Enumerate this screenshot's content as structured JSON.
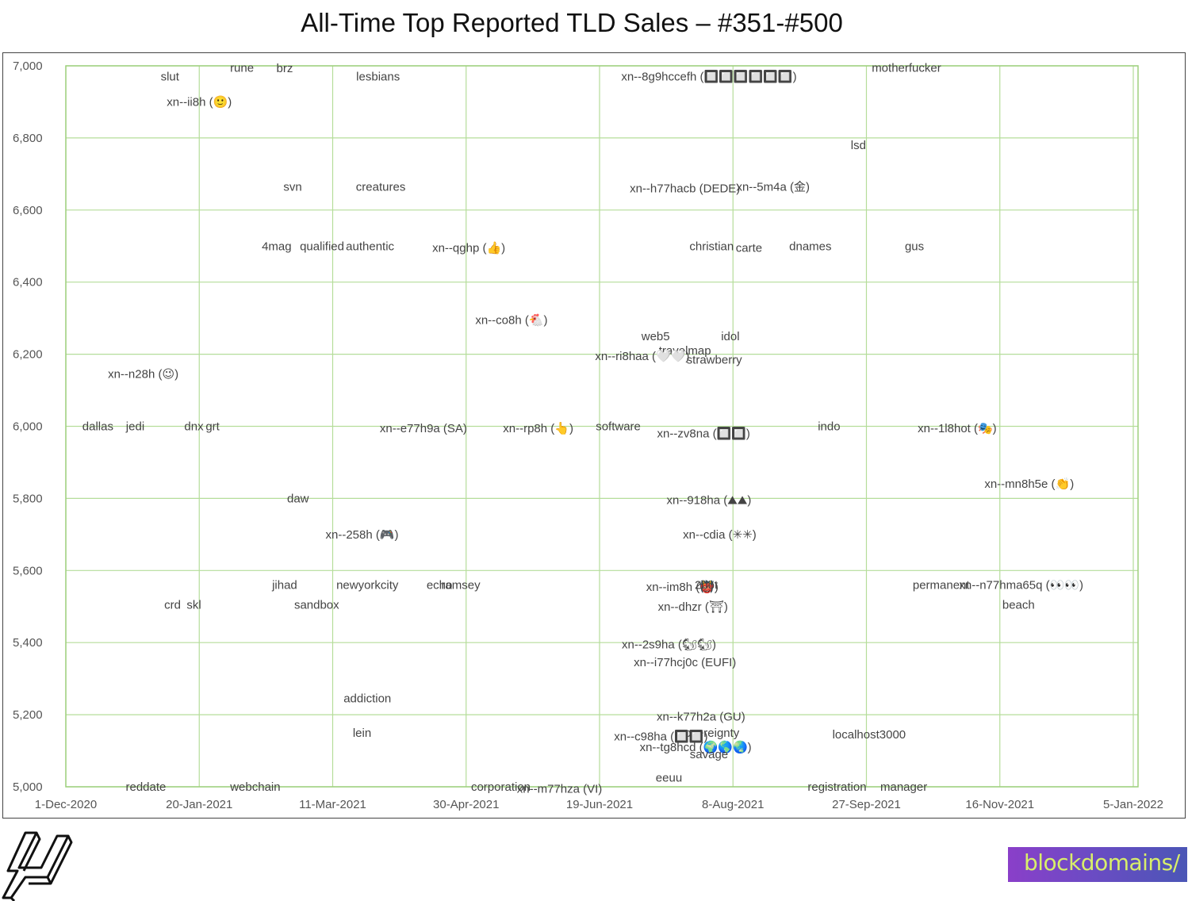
{
  "title": "All-Time Top Reported TLD Sales – #351-#500",
  "colors": {
    "grid": "#b5dd9a",
    "axis": "#9fd07f",
    "label": "#444444",
    "tick": "#555555",
    "logo_text": "#d8ef6a"
  },
  "logos": {
    "left_icon": "hexagon-logo-icon",
    "right_text": "blockdomains/"
  },
  "chart_data": {
    "type": "scatter",
    "title": "All-Time Top Reported TLD Sales – #351-#500",
    "x_axis": {
      "type": "date",
      "min": "2020-12-01",
      "max": "2022-01-05",
      "ticks": [
        "1-Dec-2020",
        "20-Jan-2021",
        "11-Mar-2021",
        "30-Apr-2021",
        "19-Jun-2021",
        "8-Aug-2021",
        "27-Sep-2021",
        "16-Nov-2021",
        "5-Jan-2022"
      ]
    },
    "y_axis": {
      "min": 5000,
      "max": 7000,
      "ticks": [
        "5,000",
        "5,200",
        "5,400",
        "5,600",
        "5,800",
        "6,000",
        "6,200",
        "6,400",
        "6,600",
        "6,800",
        "7,000"
      ]
    },
    "grid": true,
    "legend": "none",
    "points": [
      {
        "label": "slut",
        "x": "2021-01-09",
        "y": 6970
      },
      {
        "label": "rune",
        "x": "2021-02-05",
        "y": 6995
      },
      {
        "label": "brz",
        "x": "2021-02-21",
        "y": 6993
      },
      {
        "label": "lesbians",
        "x": "2021-03-28",
        "y": 6970
      },
      {
        "label": "xn--ii8h (🙂)",
        "x": "2021-01-20",
        "y": 6900
      },
      {
        "label": "xn--8g9hccefh (🔲🔲🔲🔲🔲🔲)",
        "x": "2021-07-30",
        "y": 6970
      },
      {
        "label": "motherfucker",
        "x": "2021-10-12",
        "y": 6995
      },
      {
        "label": "lsd",
        "x": "2021-09-24",
        "y": 6780
      },
      {
        "label": "svn",
        "x": "2021-02-24",
        "y": 6665
      },
      {
        "label": "creatures",
        "x": "2021-03-29",
        "y": 6665
      },
      {
        "label": "xn--h77hacb (DEDE)",
        "x": "2021-07-21",
        "y": 6660
      },
      {
        "label": "xn--5m4a (金)",
        "x": "2021-08-23",
        "y": 6665
      },
      {
        "label": "4mag",
        "x": "2021-02-18",
        "y": 6500
      },
      {
        "label": "qualified",
        "x": "2021-03-07",
        "y": 6500
      },
      {
        "label": "authentic",
        "x": "2021-03-25",
        "y": 6500
      },
      {
        "label": "xn--qghp (👍)",
        "x": "2021-05-01",
        "y": 6495
      },
      {
        "label": "christian",
        "x": "2021-07-31",
        "y": 6500
      },
      {
        "label": "carte",
        "x": "2021-08-14",
        "y": 6495
      },
      {
        "label": "dnames",
        "x": "2021-09-06",
        "y": 6500
      },
      {
        "label": "gus",
        "x": "2021-10-15",
        "y": 6500
      },
      {
        "label": "xn--co8h (🐔)",
        "x": "2021-05-17",
        "y": 6295
      },
      {
        "label": "web5",
        "x": "2021-07-10",
        "y": 6250
      },
      {
        "label": "idol",
        "x": "2021-08-07",
        "y": 6250
      },
      {
        "label": "travelmap",
        "x": "2021-07-21",
        "y": 6210
      },
      {
        "label": "xn--ri8haa (🤍🤍)",
        "x": "2021-07-05",
        "y": 6195
      },
      {
        "label": "strawberry",
        "x": "2021-08-01",
        "y": 6185
      },
      {
        "label": "xn--n28h (😉)",
        "x": "2020-12-30",
        "y": 6145
      },
      {
        "label": "dallas",
        "x": "2020-12-13",
        "y": 6000
      },
      {
        "label": "jedi",
        "x": "2020-12-27",
        "y": 6000
      },
      {
        "label": "dnx",
        "x": "2021-01-18",
        "y": 6000
      },
      {
        "label": "grt",
        "x": "2021-01-25",
        "y": 6000
      },
      {
        "label": "xn--e77h9a (SA)",
        "x": "2021-04-14",
        "y": 5995
      },
      {
        "label": "xn--rp8h (👆)",
        "x": "2021-05-27",
        "y": 5995
      },
      {
        "label": "software",
        "x": "2021-06-26",
        "y": 6000
      },
      {
        "label": "indo",
        "x": "2021-09-13",
        "y": 6000
      },
      {
        "label": "xn--1l8hot (🎭)",
        "x": "2021-10-31",
        "y": 5995
      },
      {
        "label": "xn--zv8na (🔲🔲)",
        "x": "2021-07-28",
        "y": 5980
      },
      {
        "label": "xn--mn8h5e (👏)",
        "x": "2021-11-27",
        "y": 5840
      },
      {
        "label": "daw",
        "x": "2021-02-26",
        "y": 5800
      },
      {
        "label": "xn--918ha (⛰⛰)",
        "x": "2021-07-30",
        "y": 5795
      },
      {
        "label": "xn--258h (🎮)",
        "x": "2021-03-22",
        "y": 5700
      },
      {
        "label": "xn--cdia (✳✳)",
        "x": "2021-08-03",
        "y": 5700
      },
      {
        "label": "jihad",
        "x": "2021-02-21",
        "y": 5560
      },
      {
        "label": "newyorkcity",
        "x": "2021-03-24",
        "y": 5560
      },
      {
        "label": "echo",
        "x": "2021-04-20",
        "y": 5560
      },
      {
        "label": "ramsey",
        "x": "2021-04-28",
        "y": 5560
      },
      {
        "label": "permanent",
        "x": "2021-10-25",
        "y": 5560
      },
      {
        "label": "xn--n77hma65q (👀👀)",
        "x": "2021-11-24",
        "y": 5560
      },
      {
        "label": "xn--im8h (👹)",
        "x": "2021-07-20",
        "y": 5555
      },
      {
        "label": "2bot",
        "x": "2021-07-29",
        "y": 5560
      },
      {
        "label": "crd",
        "x": "2021-01-10",
        "y": 5505
      },
      {
        "label": "skl",
        "x": "2021-01-18",
        "y": 5505
      },
      {
        "label": "sandbox",
        "x": "2021-03-05",
        "y": 5505
      },
      {
        "label": "xn--dhzr (⛩)",
        "x": "2021-07-24",
        "y": 5500
      },
      {
        "label": "beach",
        "x": "2021-11-23",
        "y": 5505
      },
      {
        "label": "xn--2s9ha (🐿🐿)",
        "x": "2021-07-15",
        "y": 5395
      },
      {
        "label": "xn--i77hcj0c (EUFI)",
        "x": "2021-07-21",
        "y": 5345
      },
      {
        "label": "addiction",
        "x": "2021-03-24",
        "y": 5245
      },
      {
        "label": "xn--k77h2a (GU)",
        "x": "2021-07-27",
        "y": 5195
      },
      {
        "label": "lein",
        "x": "2021-03-22",
        "y": 5150
      },
      {
        "label": "sovereignty",
        "x": "2021-07-30",
        "y": 5150
      },
      {
        "label": "xn--c98ha (🔲🔲)",
        "x": "2021-07-12",
        "y": 5140
      },
      {
        "label": "localhost3000",
        "x": "2021-09-28",
        "y": 5145
      },
      {
        "label": "xn--tg8hcd (🌍🌎🌏)",
        "x": "2021-07-25",
        "y": 5110
      },
      {
        "label": "savage",
        "x": "2021-07-30",
        "y": 5090
      },
      {
        "label": "eeuu",
        "x": "2021-07-15",
        "y": 5025
      },
      {
        "label": "reddate",
        "x": "2020-12-31",
        "y": 5000
      },
      {
        "label": "webchain",
        "x": "2021-02-10",
        "y": 5000
      },
      {
        "label": "corporation",
        "x": "2021-05-13",
        "y": 5000
      },
      {
        "label": "xn--m77hza (VI)",
        "x": "2021-06-04",
        "y": 4995
      },
      {
        "label": "registration",
        "x": "2021-09-16",
        "y": 5000
      },
      {
        "label": "manager",
        "x": "2021-10-11",
        "y": 5000
      }
    ]
  }
}
